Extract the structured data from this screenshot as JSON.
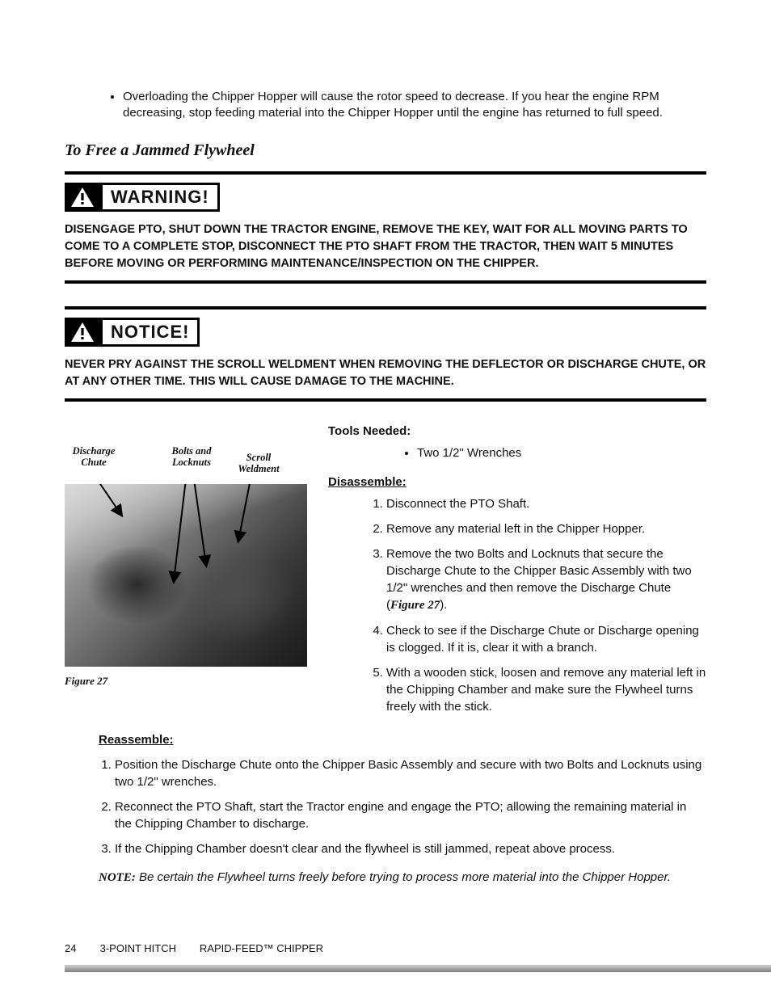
{
  "colors": {
    "text": "#111111",
    "background": "#ffffff",
    "rule": "#000000",
    "footer_bar_top": "#d0d0d0",
    "footer_bar_bottom": "#7d7d7d"
  },
  "top_bullet": "Overloading the Chipper Hopper will cause the rotor speed to decrease.  If you hear the engine RPM decreasing, stop feeding material into the Chipper Hopper until the engine has returned to full speed.",
  "section_heading": "To Free a Jammed Flywheel",
  "warning": {
    "label": "WARNING!",
    "text": "DISENGAGE PTO, SHUT DOWN THE TRACTOR ENGINE, REMOVE THE KEY, WAIT FOR ALL MOVING PARTS TO COME TO A COMPLETE STOP, DISCONNECT THE PTO SHAFT FROM THE TRACTOR, THEN WAIT 5 MINUTES BEFORE MOVING OR PERFORMING MAINTENANCE/INSPECTION ON THE CHIPPER."
  },
  "notice": {
    "label": "NOTICE!",
    "text": "NEVER PRY AGAINST THE SCROLL WELDMENT WHEN REMOVING THE DEFLECTOR OR DISCHARGE CHUTE, OR AT ANY OTHER TIME.  THIS WILL CAUSE DAMAGE TO THE MACHINE."
  },
  "figure": {
    "labels": {
      "discharge_chute": "Discharge Chute",
      "bolts_locknuts": "Bolts and Locknuts",
      "scroll_weldment": "Scroll Weldment"
    },
    "caption": "Figure 27"
  },
  "tools": {
    "heading": "Tools Needed:",
    "items": [
      "Two 1/2\" Wrenches"
    ]
  },
  "disassemble": {
    "heading": "Disassemble:",
    "steps": [
      "Disconnect the PTO Shaft.",
      "Remove any material left in the Chipper Hopper.",
      "Remove the two Bolts and Locknuts that secure the Discharge Chute to the Chipper Basic Assembly with two 1/2\" wrenches and then remove the Discharge Chute (<strong class=\"figref\">Figure 27</strong>).",
      "Check to see if the Discharge Chute or Discharge opening is clogged.  If it is, clear it with a branch.",
      "With a wooden stick, loosen and remove any material left in the Chipping Chamber and make sure the Flywheel turns freely with the stick."
    ]
  },
  "reassemble": {
    "heading": "Reassemble:",
    "steps": [
      "Position the Discharge Chute onto the Chipper Basic Assembly and secure with two Bolts and Locknuts using two 1/2\" wrenches.",
      "Reconnect the PTO Shaft, start the Tractor engine and engage the PTO; allowing the remaining material in the Chipping Chamber to discharge.",
      "If the Chipping Chamber doesn't clear and the flywheel is still jammed, repeat above process."
    ]
  },
  "note": {
    "label": "NOTE:",
    "body": "Be certain the Flywheel turns freely before trying to process more material into the Chipper Hopper."
  },
  "footer": {
    "page": "24",
    "left": "3-POINT HITCH",
    "right": "RAPID-FEED™ CHIPPER"
  }
}
